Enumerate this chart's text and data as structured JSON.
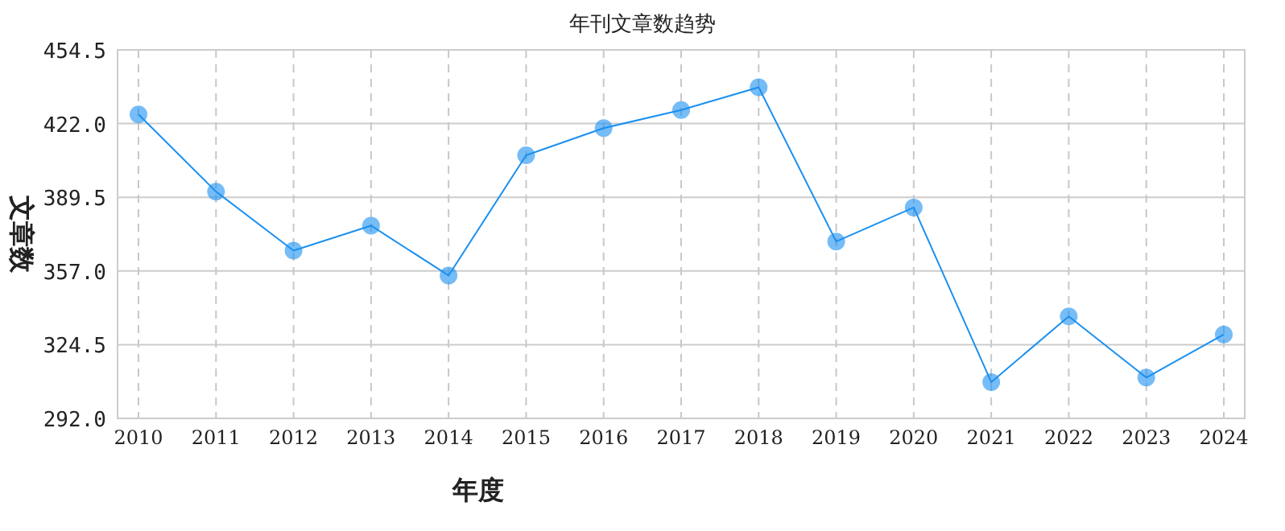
{
  "chart_data": {
    "type": "line",
    "title": "年刊文章数趋势",
    "xlabel": "年度",
    "ylabel": "文章数",
    "categories": [
      "2010",
      "2011",
      "2012",
      "2013",
      "2014",
      "2015",
      "2016",
      "2017",
      "2018",
      "2019",
      "2020",
      "2021",
      "2022",
      "2023",
      "2024"
    ],
    "series": [
      {
        "color": "#1a90f0",
        "values": [
          426,
          392,
          366,
          377,
          355,
          408,
          420,
          428,
          438,
          370,
          385,
          308,
          337,
          310,
          329
        ]
      }
    ],
    "marker": "circle",
    "grid": true,
    "ylim": [
      292,
      454.5
    ],
    "yticks": [
      {
        "value": 292,
        "label": "292.0"
      },
      {
        "value": 324.5,
        "label": "324.5"
      },
      {
        "value": 357,
        "label": "357.0"
      },
      {
        "value": 389.5,
        "label": "389.5"
      },
      {
        "value": 422,
        "label": "422.0"
      },
      {
        "value": 454.5,
        "label": "454.5"
      }
    ]
  }
}
